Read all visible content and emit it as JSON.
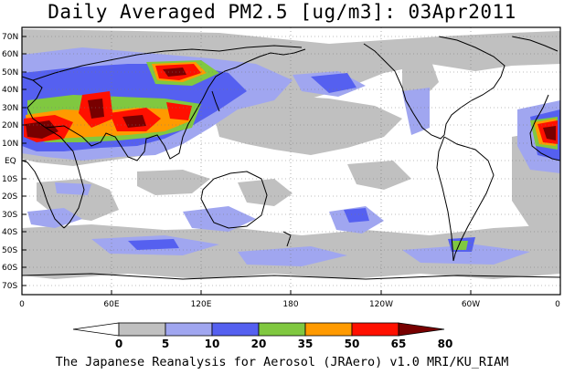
{
  "title": "Daily Averaged PM2.5 [ug/m3]: 03Apr2011",
  "credit": "The Japanese Reanalysis for Aerosol (JRAero) v1.0 MRI/KU_RIAM",
  "map": {
    "projection": "cylindrical equidistant",
    "lon_range": [
      0,
      360
    ],
    "lat_range": [
      -75,
      75
    ],
    "gridlines": "dotted",
    "lat_labels": [
      "70N",
      "60N",
      "50N",
      "40N",
      "30N",
      "20N",
      "10N",
      "EQ",
      "10S",
      "20S",
      "30S",
      "40S",
      "50S",
      "60S",
      "70S"
    ],
    "lon_labels": [
      "0",
      "60E",
      "120E",
      "180",
      "120W",
      "60W",
      "0"
    ]
  },
  "colorbar": {
    "levels": [
      "0",
      "5",
      "10",
      "20",
      "35",
      "50",
      "65",
      "80"
    ],
    "colors": [
      "#ffffff",
      "#c0c0c0",
      "#a0a6f0",
      "#5560f0",
      "#80c840",
      "#ff9a00",
      "#ff1000",
      "#780000"
    ]
  }
}
